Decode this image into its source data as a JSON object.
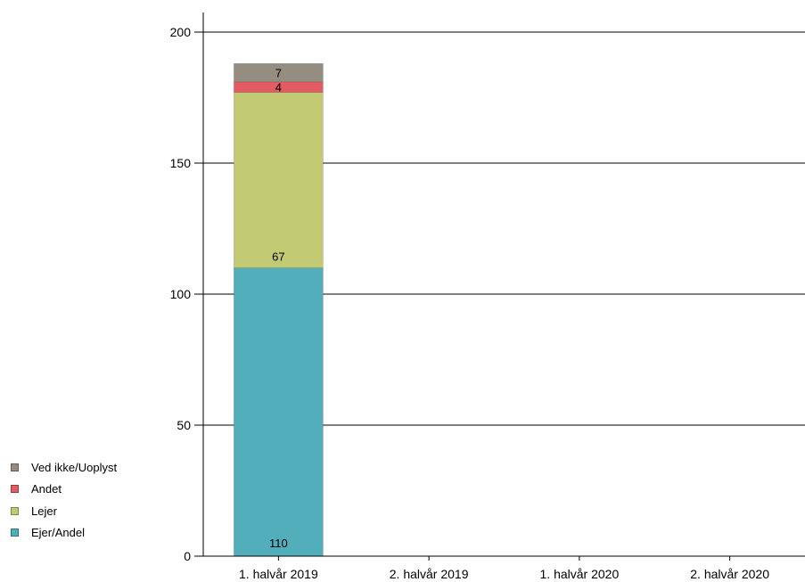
{
  "chart_data": {
    "type": "bar",
    "stacked": true,
    "categories": [
      "1. halvår 2019",
      "2. halvår 2019",
      "1. halvår 2020",
      "2. halvår 2020"
    ],
    "series": [
      {
        "name": "Ejer/Andel",
        "values": [
          110,
          null,
          null,
          null
        ],
        "color": "#52aebb"
      },
      {
        "name": "Lejer",
        "values": [
          67,
          null,
          null,
          null
        ],
        "color": "#c2cb74"
      },
      {
        "name": "Andet",
        "values": [
          4,
          null,
          null,
          null
        ],
        "color": "#e35c63"
      },
      {
        "name": "Ved ikke/Uoplyst",
        "values": [
          7,
          null,
          null,
          null
        ],
        "color": "#948d80"
      }
    ],
    "ylim": [
      0,
      200
    ],
    "yticks": [
      0,
      50,
      100,
      150,
      200
    ],
    "grid": true,
    "legend_position": "left-bottom",
    "legend_order": [
      "Ved ikke/Uoplyst",
      "Andet",
      "Lejer",
      "Ejer/Andel"
    ]
  }
}
